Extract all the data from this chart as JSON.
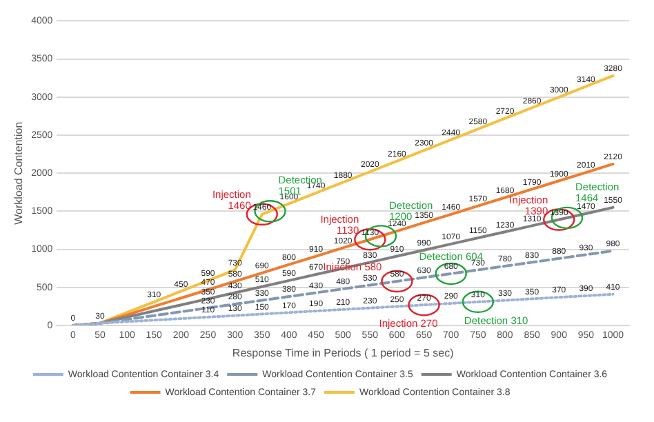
{
  "chart_data": {
    "type": "line",
    "xlabel": "Response Time in Periods ( 1 period = 5 sec)",
    "ylabel": "Workload Contention",
    "x": [
      0,
      50,
      100,
      150,
      200,
      250,
      300,
      350,
      400,
      450,
      500,
      550,
      600,
      650,
      700,
      750,
      800,
      850,
      900,
      950,
      1000
    ],
    "xlim": [
      -30,
      1030
    ],
    "xticks": [
      0,
      50,
      100,
      150,
      200,
      250,
      300,
      350,
      400,
      450,
      500,
      550,
      600,
      650,
      700,
      750,
      800,
      850,
      900,
      950,
      1000
    ],
    "ylim": [
      0,
      4000
    ],
    "yticks": [
      0,
      500,
      1000,
      1500,
      2000,
      2500,
      3000,
      3500,
      4000
    ],
    "grid": "y",
    "legend": "bottom",
    "marker": "none",
    "series": [
      {
        "name": "Workload Contention Container 3.4",
        "color": "#9db3d6",
        "line_style": "dotted",
        "values": [
          0,
          30,
          50,
          70,
          90,
          110,
          130,
          150,
          170,
          190,
          210,
          230,
          250,
          270,
          290,
          310,
          330,
          350,
          370,
          390,
          410
        ],
        "value_labels": [
          null,
          null,
          null,
          null,
          null,
          "110",
          "130",
          "150",
          "170",
          "190",
          "210",
          "230",
          "250",
          "270",
          "290",
          "310",
          "330",
          "350",
          "370",
          "390",
          "410"
        ]
      },
      {
        "name": "Workload Contention Container 3.5",
        "color": "#8497b0",
        "line_style": "dashed",
        "values": [
          0,
          30,
          80,
          130,
          180,
          230,
          280,
          330,
          380,
          430,
          480,
          530,
          580,
          630,
          680,
          730,
          780,
          830,
          880,
          930,
          980
        ],
        "value_labels": [
          null,
          null,
          null,
          null,
          null,
          "230",
          "280",
          "330",
          "380",
          "430",
          "480",
          "530",
          "580",
          "630",
          "680",
          "730",
          "780",
          "830",
          "880",
          "930",
          "980"
        ]
      },
      {
        "name": "Workload Contention Container 3.6",
        "color": "#808080",
        "line_style": "solid",
        "values": [
          0,
          30,
          110,
          190,
          270,
          350,
          430,
          510,
          590,
          670,
          750,
          830,
          910,
          990,
          1070,
          1150,
          1230,
          1310,
          1390,
          1470,
          1550
        ],
        "value_labels": [
          null,
          null,
          null,
          null,
          null,
          "350",
          "430",
          "510",
          "590",
          "670",
          "750",
          "830",
          "910",
          "990",
          "1070",
          "1150",
          "1230",
          "1310",
          "1390",
          "1470",
          "1550"
        ]
      },
      {
        "name": "Workload Contention Container 3.7",
        "color": "#ed7d31",
        "line_style": "solid",
        "values": [
          0,
          30,
          140,
          250,
          360,
          470,
          580,
          690,
          800,
          910,
          1020,
          1130,
          1240,
          1350,
          1460,
          1570,
          1680,
          1790,
          1900,
          2010,
          2120
        ],
        "value_labels": [
          null,
          null,
          null,
          null,
          null,
          "470",
          "580",
          "690",
          "800",
          "910",
          "1020",
          "1130",
          "1240",
          "1350",
          "1460",
          "1570",
          "1680",
          "1790",
          "1900",
          "2010",
          "2120"
        ]
      },
      {
        "name": "Workload Contention Container 3.8",
        "color": "#f4c043",
        "line_style": "solid",
        "values": [
          0,
          30,
          170,
          310,
          450,
          590,
          730,
          1460,
          1600,
          1740,
          1880,
          2020,
          2160,
          2300,
          2440,
          2580,
          2720,
          2860,
          3000,
          3140,
          3280
        ],
        "value_labels": [
          "0",
          "30",
          null,
          "310",
          "450",
          "590",
          "730",
          "1460",
          "1600",
          "1740",
          "1880",
          "2020",
          "2160",
          "2300",
          "2440",
          "2580",
          "2720",
          "2860",
          "3000",
          "3140",
          "3280"
        ]
      }
    ],
    "annotations": [
      {
        "text": "Injection 1460",
        "x": 350,
        "y": 1460
      },
      {
        "text": "Detection 1501",
        "x": 365,
        "y": 1501
      },
      {
        "text": "Injection 1130",
        "x": 550,
        "y": 1130
      },
      {
        "text": "Detection 1200",
        "x": 570,
        "y": 1174
      },
      {
        "text": "Injection 1390",
        "x": 900,
        "y": 1390
      },
      {
        "text": "Detection 1464",
        "x": 915,
        "y": 1414
      },
      {
        "text": "Injection 580",
        "x": 600,
        "y": 580
      },
      {
        "text": "Detection 604",
        "x": 700,
        "y": 680
      },
      {
        "text": "Injection 270",
        "x": 650,
        "y": 270
      },
      {
        "text": "Detection 310",
        "x": 750,
        "y": 310
      }
    ]
  }
}
